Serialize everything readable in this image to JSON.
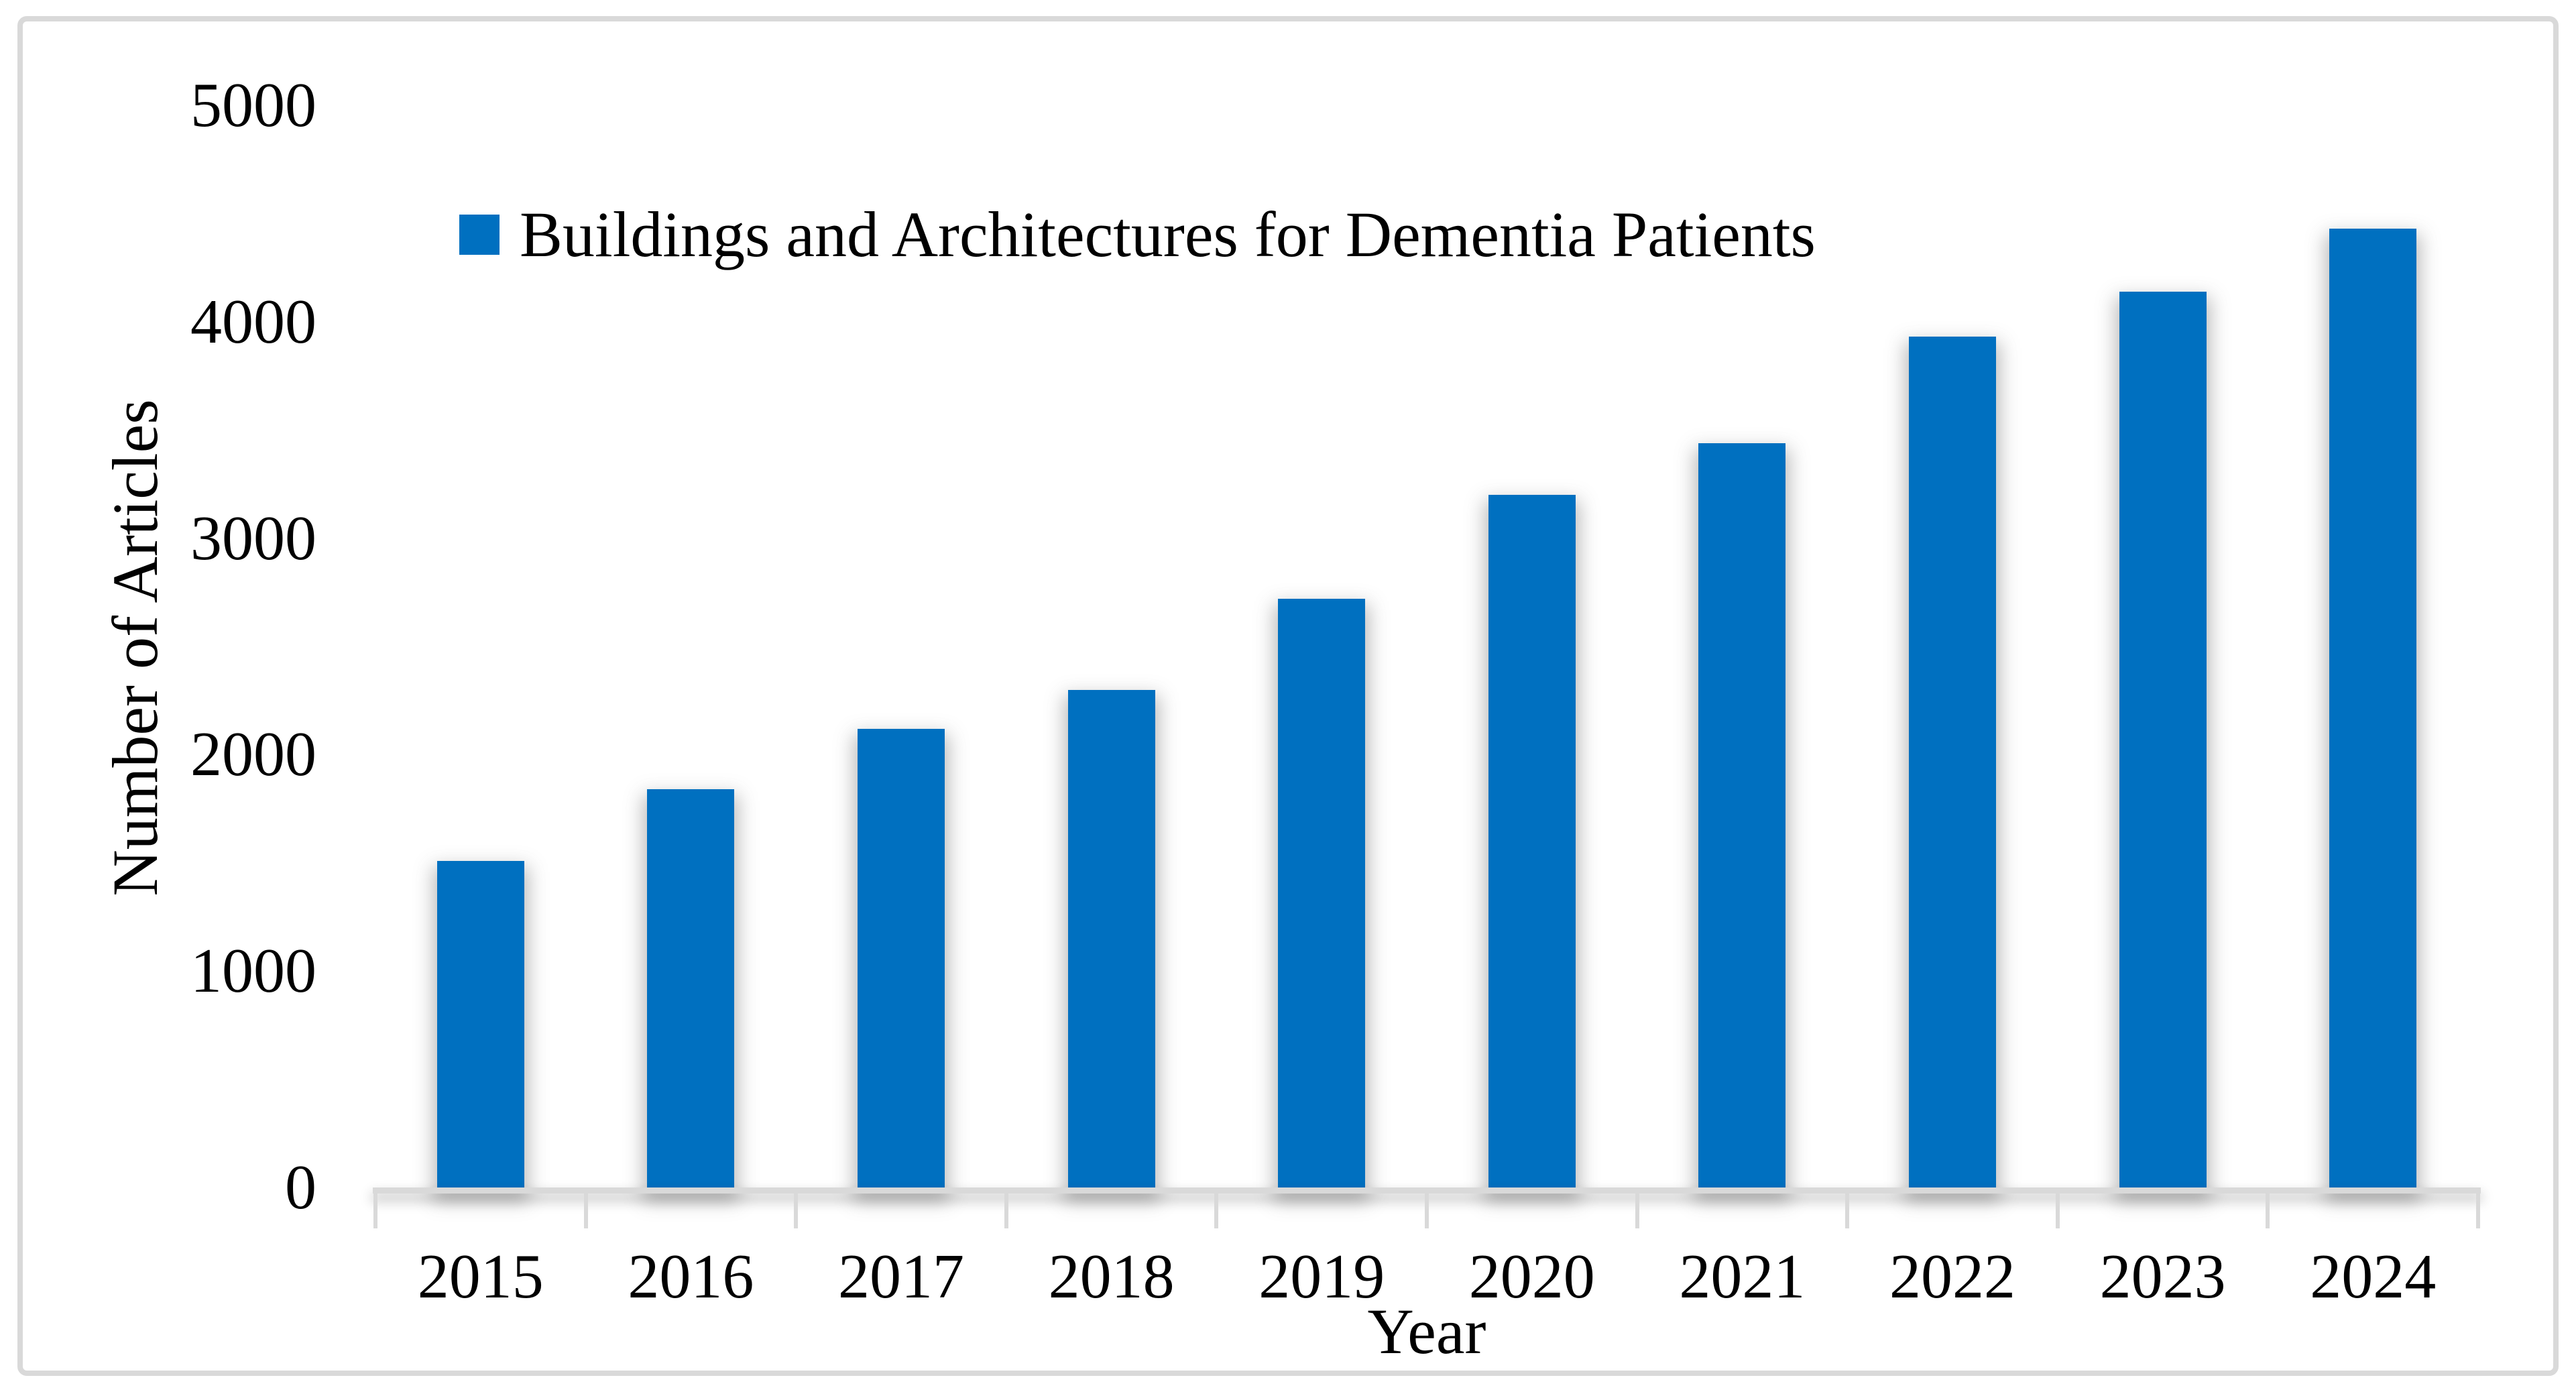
{
  "figure": {
    "background": "#FFFFFF",
    "border_color": "#D9D9D9"
  },
  "chart_data": {
    "type": "bar",
    "categories": [
      "2015",
      "2016",
      "2017",
      "2018",
      "2019",
      "2020",
      "2021",
      "2022",
      "2023",
      "2024"
    ],
    "series": [
      {
        "name": "Buildings and Architectures for Dementia Patients",
        "color": "#0070C0",
        "values": [
          1510,
          1840,
          2120,
          2300,
          2720,
          3200,
          3440,
          3930,
          4140,
          4430
        ]
      }
    ],
    "title": "",
    "xlabel": "Year",
    "ylabel": "Number of Articles",
    "ylim": [
      0,
      5000
    ],
    "yticks": [
      0,
      1000,
      2000,
      3000,
      4000,
      5000
    ],
    "grid": false,
    "legend_position": "top-left-inside",
    "axis_color": "#D9D9D9"
  }
}
